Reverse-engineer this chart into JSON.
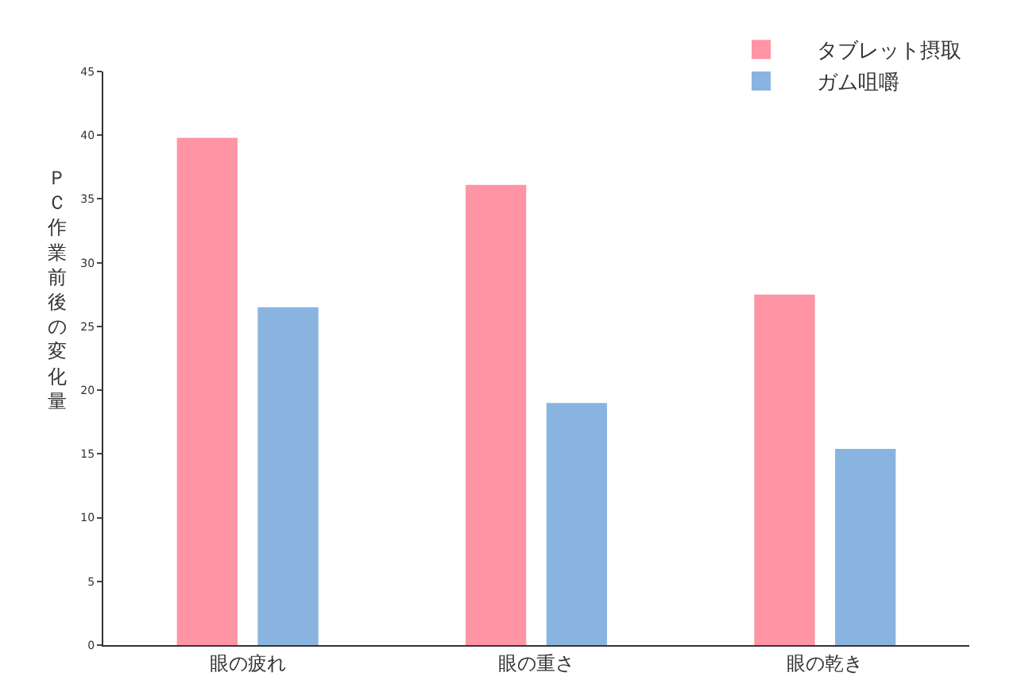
{
  "chart_data": {
    "type": "bar",
    "ylabel": "ＰＣ作業前後の変化量",
    "categories": [
      "眼の疲れ",
      "眼の重さ",
      "眼の乾き"
    ],
    "series": [
      {
        "name": "タブレット摂取",
        "color": "#ff94a4",
        "values": [
          39.8,
          36.1,
          27.5
        ]
      },
      {
        "name": "ガム咀嚼",
        "color": "#8ab4e0",
        "values": [
          26.5,
          19,
          15.4
        ]
      }
    ],
    "ylim": [
      0,
      45
    ],
    "yticks": [
      0,
      5,
      10,
      15,
      20,
      25,
      30,
      35,
      40,
      45
    ],
    "grid": false,
    "legend": "top right"
  }
}
